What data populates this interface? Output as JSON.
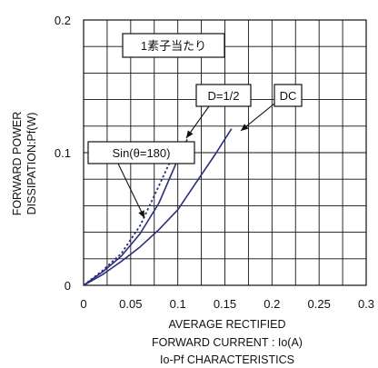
{
  "chart_data": {
    "type": "line",
    "title": "Io-Pf CHARACTERISTICS",
    "xlabel": [
      "AVERAGE RECTIFIED",
      "FORWARD CURRENT : Io(A)"
    ],
    "ylabel": [
      "FORWARD POWER",
      "DISSIPATION:Pf(W)"
    ],
    "xlim": [
      0,
      0.3
    ],
    "ylim": [
      0,
      0.2
    ],
    "x_ticks": [
      "0",
      "0.05",
      "0.1",
      "0.15",
      "0.2",
      "0.25",
      "0.3"
    ],
    "y_ticks": [
      "0",
      "0.1",
      "0.2"
    ],
    "grid": true,
    "series": [
      {
        "name": "DC",
        "style": "solid",
        "color": "#2a2f7a",
        "x": [
          0,
          0.02,
          0.04,
          0.06,
          0.08,
          0.1,
          0.12,
          0.14,
          0.157
        ],
        "y": [
          0,
          0.008,
          0.018,
          0.029,
          0.042,
          0.057,
          0.078,
          0.099,
          0.118
        ]
      },
      {
        "name": "D=1/2",
        "style": "solid",
        "color": "#2a2f7a",
        "x": [
          0,
          0.02,
          0.04,
          0.06,
          0.08,
          0.1,
          0.11
        ],
        "y": [
          0,
          0.01,
          0.022,
          0.039,
          0.062,
          0.095,
          0.11
        ]
      },
      {
        "name": "Sin(θ=180)",
        "style": "dotted",
        "color": "#2a2f7a",
        "x": [
          0,
          0.02,
          0.04,
          0.06,
          0.08,
          0.093
        ],
        "y": [
          0,
          0.011,
          0.024,
          0.045,
          0.075,
          0.095
        ]
      }
    ],
    "annotations": [
      {
        "text": "1素子当たり"
      },
      {
        "text": "D=1/2"
      },
      {
        "text": "DC"
      },
      {
        "text": "Sin(θ=180)"
      }
    ]
  }
}
